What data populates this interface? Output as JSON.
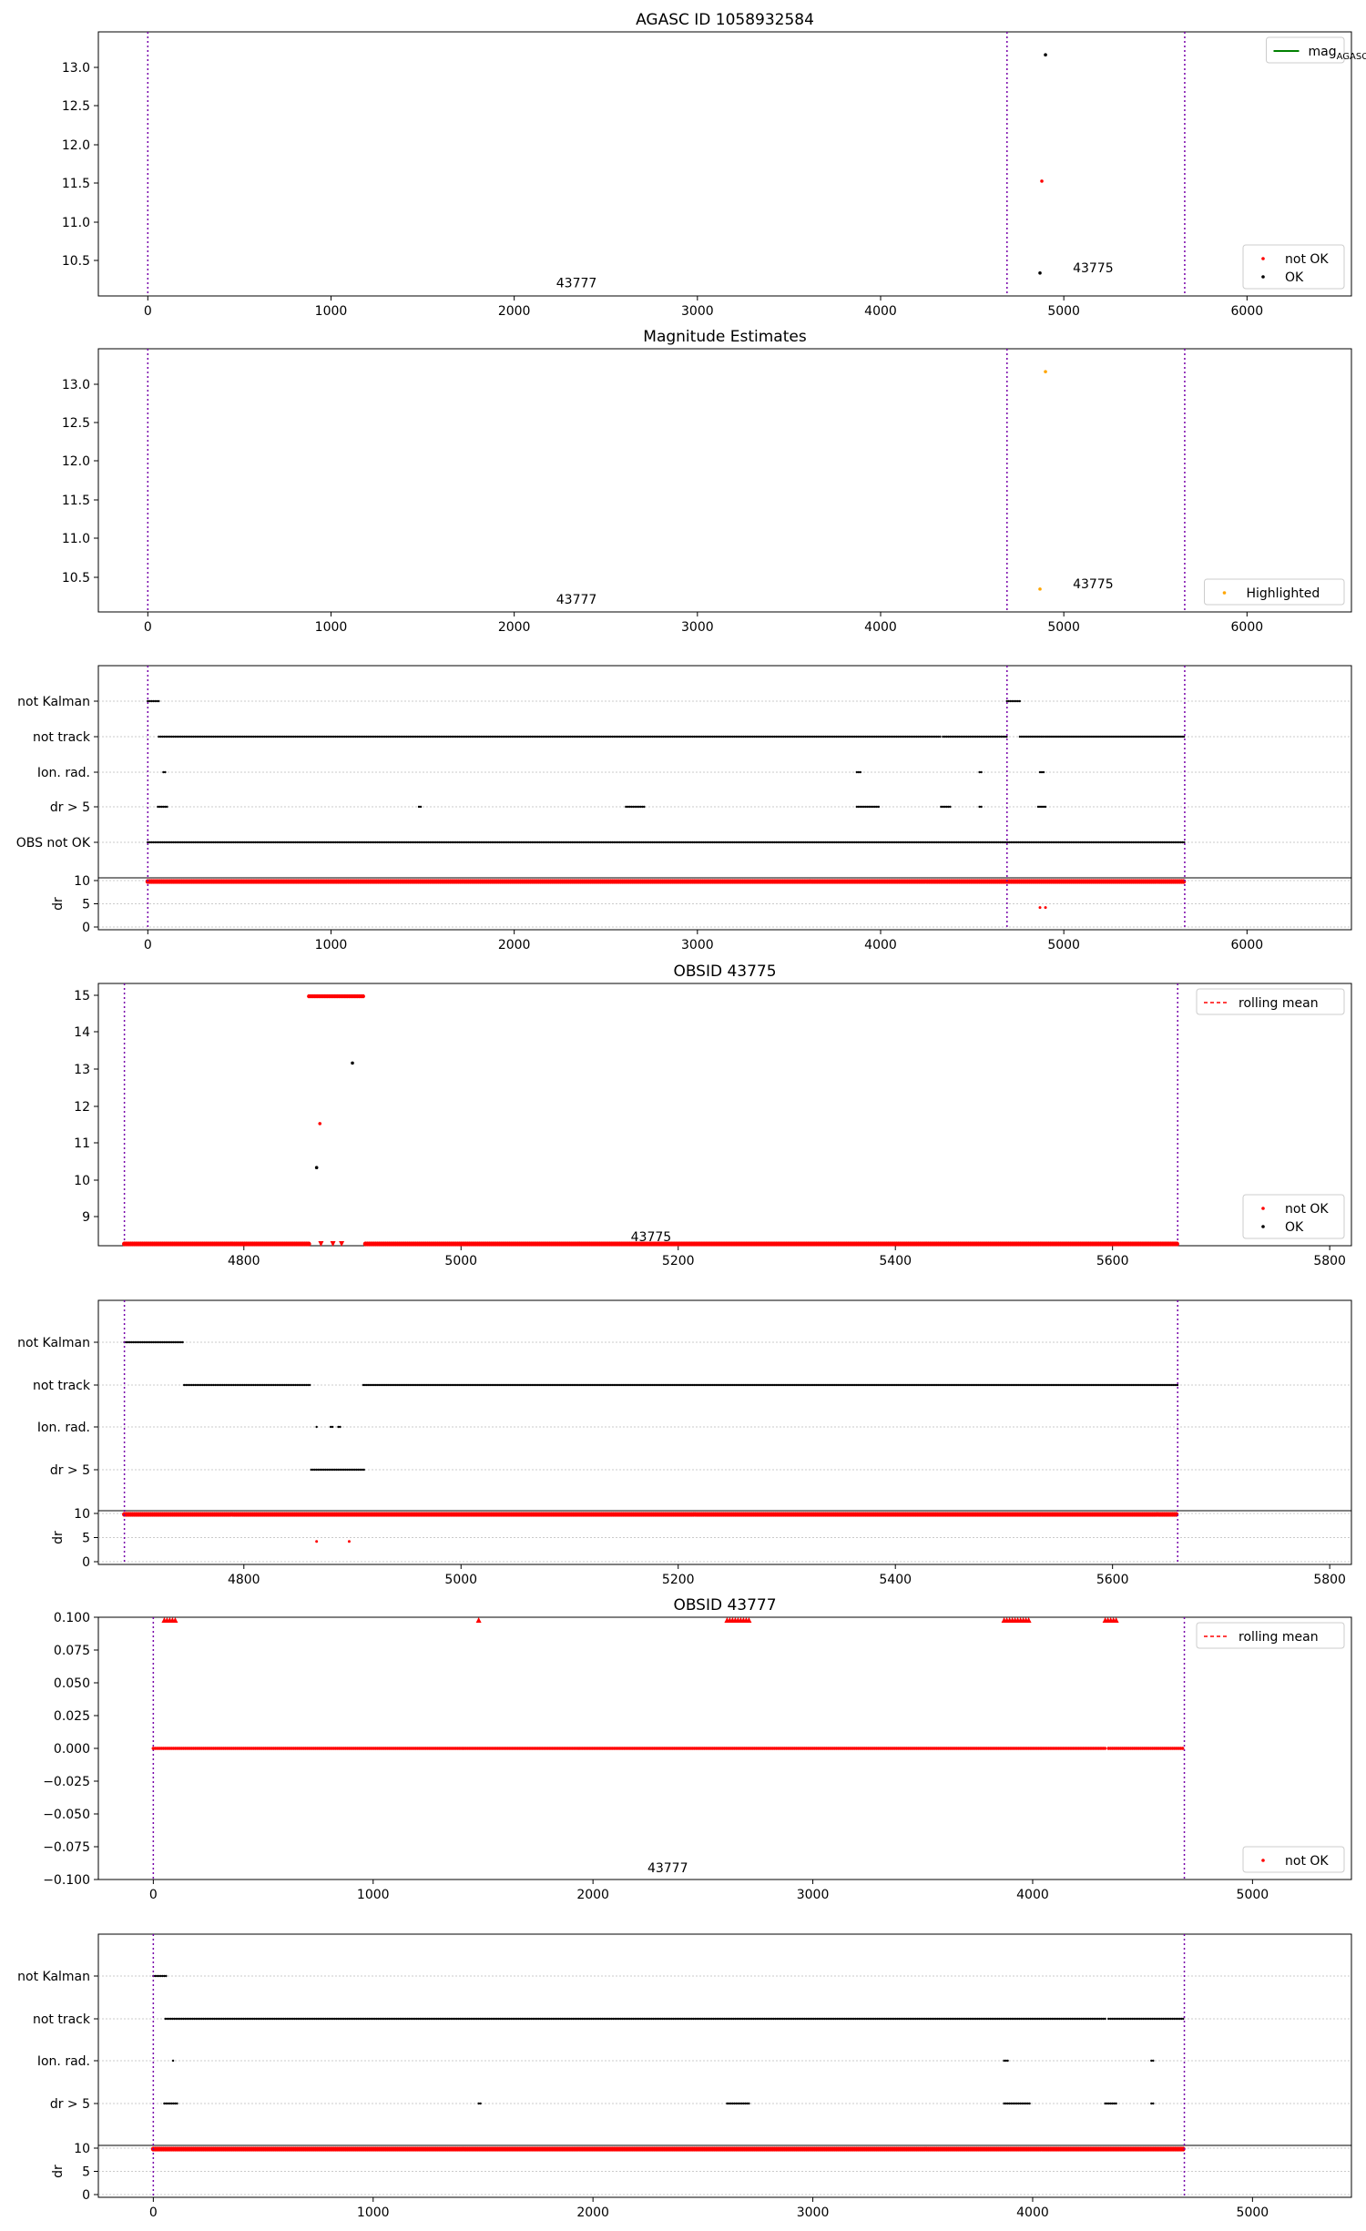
{
  "colors": {
    "ok": "#000000",
    "not_ok": "#ff0000",
    "highlighted": "#ffa500",
    "mag_agasc": "#008000",
    "obs_boundary": "#7700aa",
    "rolling_mean": "#ff0000",
    "grid": "#bbbbbb"
  },
  "chart_data": [
    {
      "type": "scatter",
      "title": "AGASC ID 1058932584",
      "xlim": [
        -270,
        6570
      ],
      "ylim": [
        10.03,
        13.48
      ],
      "xticks": [
        "0",
        "1000",
        "2000",
        "3000",
        "4000",
        "5000",
        "6000"
      ],
      "yticks": [
        "10.5",
        "11.0",
        "11.5",
        "12.0",
        "12.5",
        "13.0"
      ],
      "vlines": [
        0,
        4690,
        5660
      ],
      "annotations": [
        {
          "text": "43777",
          "x": 2340,
          "y": 10.2
        },
        {
          "text": "43775",
          "x": 5160,
          "y": 10.4
        }
      ],
      "series": [
        {
          "name": "not OK",
          "points": [
            [
              4880,
              11.53
            ]
          ]
        },
        {
          "name": "OK",
          "points": [
            [
              4900,
              13.18
            ],
            [
              4870,
              10.33
            ]
          ]
        },
        {
          "name": "mag$_{AGASC}$",
          "points": []
        }
      ],
      "legend_upper": [
        {
          "label": "mag",
          "sub": "AGASC",
          "kind": "line"
        }
      ],
      "legend_lower": [
        {
          "label": "not OK",
          "kind": "not_ok"
        },
        {
          "label": "OK",
          "kind": "ok"
        }
      ]
    },
    {
      "type": "scatter",
      "title": "Magnitude Estimates",
      "xlim": [
        -270,
        6570
      ],
      "ylim": [
        10.03,
        13.48
      ],
      "xticks": [
        "0",
        "1000",
        "2000",
        "3000",
        "4000",
        "5000",
        "6000"
      ],
      "yticks": [
        "10.5",
        "11.0",
        "11.5",
        "12.0",
        "12.5",
        "13.0"
      ],
      "vlines": [
        0,
        4690,
        5660
      ],
      "annotations": [
        {
          "text": "43777",
          "x": 2340,
          "y": 10.2
        },
        {
          "text": "43775",
          "x": 5160,
          "y": 10.4
        }
      ],
      "series": [
        {
          "name": "Highlighted",
          "points": [
            [
              4900,
              13.18
            ],
            [
              4870,
              10.33
            ]
          ]
        }
      ],
      "legend_lower": [
        {
          "label": "Highlighted",
          "kind": "highlighted"
        }
      ]
    },
    {
      "type": "scatter",
      "title": "",
      "xlim": [
        -270,
        6570
      ],
      "xticks": [
        "0",
        "1000",
        "2000",
        "3000",
        "4000",
        "5000",
        "6000"
      ],
      "vlines": [
        0,
        4690,
        5660
      ],
      "flag_labels": [
        "not Kalman",
        "not track",
        "Ion. rad.",
        "dr > 5",
        "OBS not OK"
      ],
      "flags": {
        "not Kalman": [
          [
            0,
            60
          ],
          [
            4690,
            4760
          ]
        ],
        "not track": [
          [
            60,
            4330
          ],
          [
            4340,
            4690
          ],
          [
            4760,
            4890
          ],
          [
            4900,
            5660
          ]
        ],
        "Ion. rad.": [
          [
            85,
            95
          ],
          [
            3870,
            3890
          ],
          [
            4540,
            4550
          ],
          [
            4870,
            4890
          ]
        ],
        "dr > 5": [
          [
            55,
            110
          ],
          [
            1480,
            1490
          ],
          [
            2610,
            2710
          ],
          [
            3870,
            3990
          ],
          [
            4330,
            4380
          ],
          [
            4540,
            4550
          ],
          [
            4860,
            4900
          ]
        ],
        "OBS not OK": [
          [
            0,
            5660
          ]
        ]
      },
      "dr": {
        "ylim": [
          0,
          10
        ],
        "yticks": [
          "0",
          "5",
          "10"
        ],
        "ylabel": "dr",
        "clipped_points": [
          [
            0,
            5660
          ]
        ],
        "low_points": [
          [
            4870,
            4.2
          ],
          [
            4900,
            4.2
          ]
        ]
      }
    },
    {
      "type": "scatter",
      "title": "OBSID 43775",
      "xlim": [
        4666,
        5820
      ],
      "ylim": [
        8.2,
        15.35
      ],
      "xticks": [
        "4800",
        "5000",
        "5200",
        "5400",
        "5600",
        "5800"
      ],
      "yticks": [
        "9",
        "10",
        "11",
        "12",
        "13",
        "14",
        "15"
      ],
      "vlines": [
        4690,
        5660
      ],
      "annotations": [
        {
          "text": "43775",
          "x": 5175,
          "y": 8.45
        }
      ],
      "series": [
        {
          "name": "not OK",
          "points": [
            [
              4870,
              11.53
            ]
          ],
          "high_clip_range": [
            4860,
            4910
          ],
          "low_clip_ranges": [
            [
              4690,
              4860
            ],
            [
              4912,
              5660
            ]
          ],
          "low_triangles": [
            4871,
            4882,
            4890
          ]
        },
        {
          "name": "OK",
          "points": [
            [
              4900,
              13.18
            ],
            [
              4867,
              10.33
            ]
          ]
        },
        {
          "name": "rolling mean",
          "points": []
        }
      ],
      "legend_upper": [
        {
          "label": "rolling mean",
          "kind": "dashed"
        }
      ],
      "legend_lower": [
        {
          "label": "not OK",
          "kind": "not_ok"
        },
        {
          "label": "OK",
          "kind": "ok"
        }
      ]
    },
    {
      "type": "scatter",
      "title": "",
      "xlim": [
        4666,
        5820
      ],
      "xticks": [
        "4800",
        "5000",
        "5200",
        "5400",
        "5600",
        "5800"
      ],
      "vlines": [
        4690,
        5660
      ],
      "flag_labels": [
        "not Kalman",
        "not track",
        "Ion. rad.",
        "dr > 5"
      ],
      "flags": {
        "not Kalman": [
          [
            4690,
            4745
          ]
        ],
        "not track": [
          [
            4745,
            4862
          ],
          [
            4910,
            5660
          ]
        ],
        "Ion. rad.": [
          [
            4867,
            4868
          ],
          [
            4880,
            4882
          ],
          [
            4887,
            4889
          ]
        ],
        "dr > 5": [
          [
            4862,
            4912
          ]
        ]
      },
      "dr": {
        "ylim": [
          0,
          10
        ],
        "yticks": [
          "0",
          "5",
          "10"
        ],
        "ylabel": "dr",
        "clipped_points": [
          [
            4690,
            5660
          ]
        ],
        "low_points": [
          [
            4867,
            4.2
          ],
          [
            4897,
            4.2
          ]
        ]
      }
    },
    {
      "type": "scatter",
      "title": "OBSID 43777",
      "xlim": [
        -250,
        5450
      ],
      "ylim": [
        -0.1,
        0.1
      ],
      "xticks": [
        "0",
        "1000",
        "2000",
        "3000",
        "4000",
        "5000"
      ],
      "yticks": [
        "−0.100",
        "−0.075",
        "−0.050",
        "−0.025",
        "0.000",
        "0.025",
        "0.050",
        "0.075",
        "0.100"
      ],
      "vlines": [
        0,
        4690
      ],
      "annotations": [
        {
          "text": "43777",
          "x": 2340,
          "y": -0.091
        }
      ],
      "series": [
        {
          "name": "not OK",
          "zero_ranges": [
            [
              0,
              4330
            ],
            [
              4345,
              4690
            ]
          ],
          "top_triangles": [
            [
              50,
              110
            ],
            [
              1480,
              1490
            ],
            [
              2610,
              2710
            ],
            [
              3870,
              3990
            ],
            [
              4330,
              4380
            ]
          ]
        },
        {
          "name": "rolling mean",
          "points": []
        }
      ],
      "legend_upper": [
        {
          "label": "rolling mean",
          "kind": "dashed"
        }
      ],
      "legend_lower": [
        {
          "label": "not OK",
          "kind": "not_ok"
        }
      ]
    },
    {
      "type": "scatter",
      "title": "",
      "xlim": [
        -250,
        5450
      ],
      "xticks": [
        "0",
        "1000",
        "2000",
        "3000",
        "4000",
        "5000"
      ],
      "vlines": [
        0,
        4690
      ],
      "flag_labels": [
        "not Kalman",
        "not track",
        "Ion. rad.",
        "dr > 5"
      ],
      "flags": {
        "not Kalman": [
          [
            0,
            60
          ]
        ],
        "not track": [
          [
            55,
            4330
          ],
          [
            4345,
            4690
          ]
        ],
        "Ion. rad.": [
          [
            90,
            95
          ],
          [
            3870,
            3890
          ],
          [
            4540,
            4550
          ]
        ],
        "dr > 5": [
          [
            50,
            110
          ],
          [
            1480,
            1490
          ],
          [
            2610,
            2710
          ],
          [
            3870,
            3990
          ],
          [
            4330,
            4380
          ],
          [
            4540,
            4550
          ]
        ]
      },
      "dr": {
        "ylim": [
          0,
          10
        ],
        "yticks": [
          "0",
          "5",
          "10"
        ],
        "ylabel": "dr",
        "clipped_points": [
          [
            0,
            4690
          ]
        ],
        "low_points": []
      }
    }
  ]
}
